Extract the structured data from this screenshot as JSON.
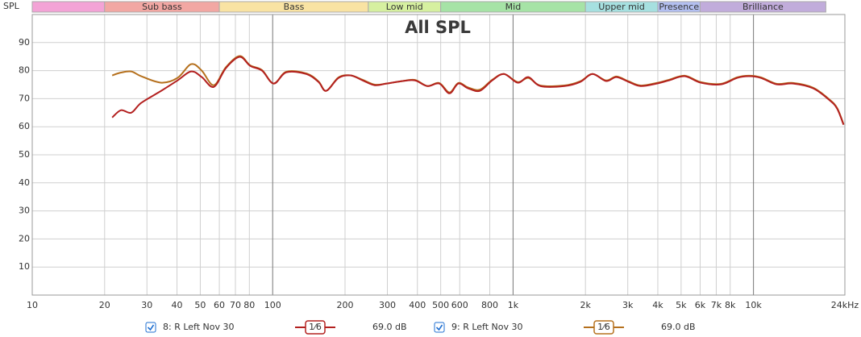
{
  "chart_data": {
    "type": "line",
    "title": "All SPL",
    "y_label": "SPL",
    "xlog": true,
    "grid": true,
    "xlim": [
      10,
      24000
    ],
    "ylim": [
      0,
      100
    ],
    "yticks": [
      10,
      20,
      30,
      40,
      50,
      60,
      70,
      80,
      90
    ],
    "xticks": [
      10,
      20,
      30,
      40,
      50,
      60,
      70,
      80,
      100,
      200,
      300,
      400,
      500,
      600,
      800,
      {
        "value": 1000,
        "label": "1k"
      },
      {
        "value": 2000,
        "label": "2k"
      },
      {
        "value": 3000,
        "label": "3k"
      },
      {
        "value": 4000,
        "label": "4k"
      },
      {
        "value": 5000,
        "label": "5k"
      },
      {
        "value": 6000,
        "label": "6k"
      },
      {
        "value": 7000,
        "label": "7k"
      },
      {
        "value": 8000,
        "label": "8k"
      },
      {
        "value": 10000,
        "label": "10k"
      },
      {
        "value": 24000,
        "label": "24kHz"
      }
    ],
    "bands": [
      {
        "name": null,
        "from": 10,
        "to": 20,
        "color": "#f3a3d6"
      },
      {
        "name": "Sub bass",
        "from": 20,
        "to": 60,
        "color": "#f2a7a3"
      },
      {
        "name": "Bass",
        "from": 60,
        "to": 250,
        "color": "#f9e3a3"
      },
      {
        "name": "Low mid",
        "from": 250,
        "to": 500,
        "color": "#d6f0a0"
      },
      {
        "name": "Mid",
        "from": 500,
        "to": 2000,
        "color": "#a6e3a6"
      },
      {
        "name": "Upper mid",
        "from": 2000,
        "to": 4000,
        "color": "#a6e0e0"
      },
      {
        "name": "Presence",
        "from": 4000,
        "to": 6000,
        "color": "#b3bff0"
      },
      {
        "name": "Brilliance",
        "from": 6000,
        "to": 20000,
        "color": "#c1acdb"
      }
    ],
    "x": [
      21.5,
      23.4,
      25.8,
      28.4,
      34.4,
      40.2,
      45.8,
      50.7,
      56.9,
      63.9,
      72.9,
      80.6,
      90.3,
      101,
      114,
      138,
      155,
      167,
      188,
      211,
      237,
      266,
      298,
      348,
      391,
      440,
      493,
      544,
      592,
      650,
      728,
      818,
      917,
      1045,
      1158,
      1299,
      1635,
      1904,
      2138,
      2437,
      2692,
      3022,
      3391,
      3960,
      4436,
      5172,
      6036,
      7322,
      8541,
      9580,
      10740,
      12500,
      14600,
      17700,
      20630,
      22270,
      23700
    ],
    "series": [
      {
        "name": "8: R Left Nov 30",
        "color": "#b3201f",
        "smoothing": "1⁄6",
        "level": "69.0 dB",
        "values": [
          63.3,
          65.9,
          65,
          68.5,
          72.8,
          76.5,
          79.7,
          77.7,
          74.2,
          80.9,
          84.9,
          81.7,
          80,
          75.4,
          79.4,
          78.8,
          76,
          72.8,
          77.4,
          78.3,
          76.5,
          74.8,
          75.4,
          76.3,
          76.5,
          74.5,
          75.4,
          71.9,
          75.4,
          73.7,
          72.8,
          76.5,
          78.8,
          75.7,
          77.7,
          74.5,
          74.5,
          76,
          78.8,
          76.3,
          77.7,
          76,
          74.5,
          75.4,
          76.5,
          78,
          75.7,
          75.1,
          77.4,
          78,
          77.4,
          75.1,
          75.4,
          73.7,
          69.6,
          66.5,
          60.7
        ]
      },
      {
        "name": "9: R Left Nov 30",
        "color": "#b5701d",
        "smoothing": "1⁄6",
        "level": "69.0 dB",
        "values": [
          78.3,
          79.3,
          79.7,
          78,
          75.7,
          77.4,
          82.3,
          80,
          74.8,
          81.2,
          85.2,
          81.9,
          80.2,
          75.4,
          79.6,
          79,
          76.2,
          72.8,
          77.6,
          78.3,
          76.7,
          75,
          75.4,
          76.3,
          76.7,
          74.5,
          75.6,
          72.2,
          75.6,
          74,
          73.2,
          76.7,
          78.8,
          75.9,
          77.4,
          74.7,
          74.7,
          76.2,
          78.8,
          76.5,
          77.9,
          76.2,
          74.7,
          75.6,
          76.7,
          78.2,
          75.9,
          75.3,
          77.6,
          78.2,
          77.6,
          75.3,
          75.6,
          73.9,
          69.8,
          66.7,
          60.9
        ]
      }
    ]
  }
}
